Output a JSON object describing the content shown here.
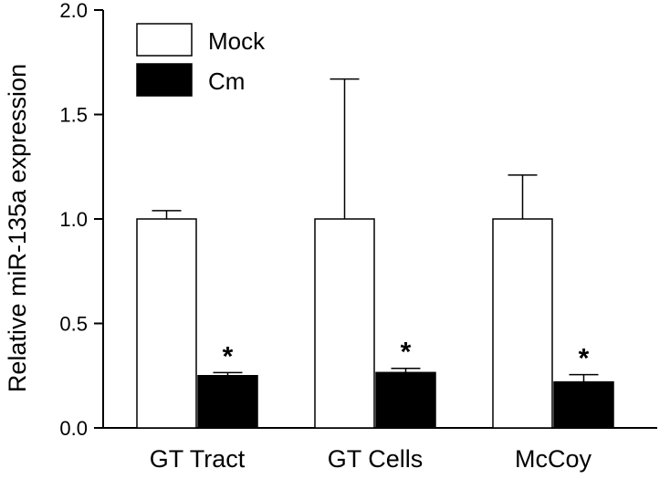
{
  "chart_data": {
    "type": "bar",
    "ylabel": "Relative miR-135a expression",
    "xlabel": "",
    "ylim": [
      0,
      2.0
    ],
    "yticks": [
      "0.0",
      "0.5",
      "1.0",
      "1.5",
      "2.0"
    ],
    "categories": [
      "GT Tract",
      "GT Cells",
      "McCoy"
    ],
    "series": [
      {
        "name": "Mock",
        "color": "#ffffff",
        "values": [
          1.0,
          1.0,
          1.0
        ],
        "error_upper": [
          0.04,
          0.67,
          0.21
        ]
      },
      {
        "name": "Cm",
        "color": "#000000",
        "values": [
          0.25,
          0.265,
          0.22
        ],
        "error_upper": [
          0.015,
          0.02,
          0.035
        ]
      }
    ],
    "annotations": [
      {
        "category": "GT Tract",
        "series": "Cm",
        "text": "*"
      },
      {
        "category": "GT Cells",
        "series": "Cm",
        "text": "*"
      },
      {
        "category": "McCoy",
        "series": "Cm",
        "text": "*"
      }
    ],
    "legend": "top-left",
    "grid": false
  }
}
